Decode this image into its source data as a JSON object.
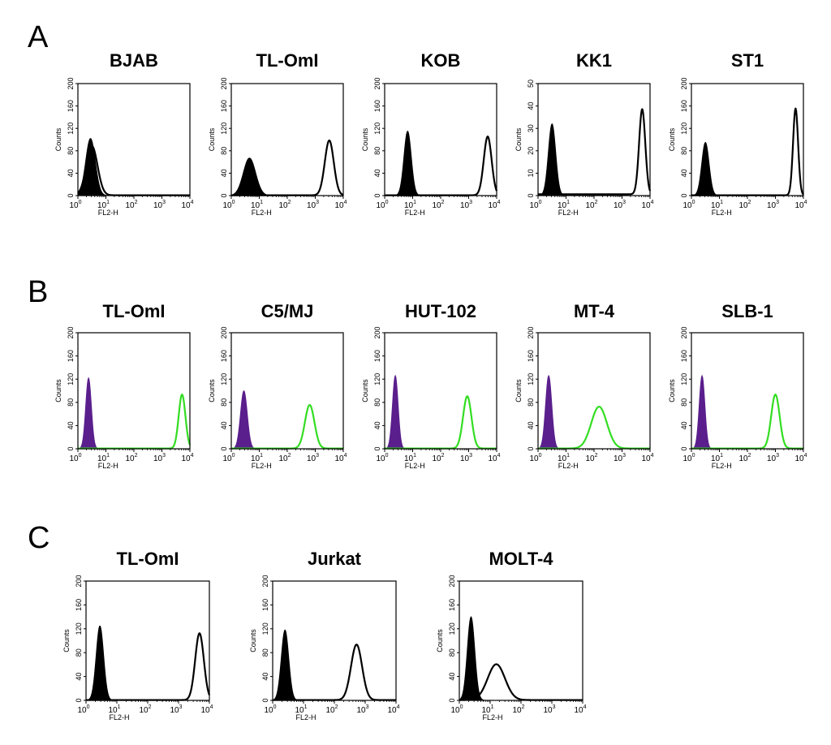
{
  "panels": [
    {
      "letter": "A",
      "colors": {
        "control": "#000000",
        "stain": "#000000"
      },
      "charts": [
        {
          "title": "BJAB",
          "ymax": 200,
          "yticks": [
            "0",
            "40",
            "80",
            "120",
            "160",
            "200"
          ],
          "control": {
            "mu": 0.45,
            "sigma": 0.17,
            "peak": 102
          },
          "stain": {
            "mu": 0.5,
            "sigma": 0.2,
            "peak": 88
          }
        },
        {
          "title": "TL-OmI",
          "ymax": 200,
          "yticks": [
            "0",
            "40",
            "80",
            "120",
            "160",
            "200"
          ],
          "control": {
            "mu": 0.65,
            "sigma": 0.22,
            "peak": 67
          },
          "stain": {
            "mu": 3.5,
            "sigma": 0.16,
            "peak": 98
          }
        },
        {
          "title": "KOB",
          "ymax": 200,
          "yticks": [
            "0",
            "40",
            "80",
            "120",
            "160",
            "200"
          ],
          "control": {
            "mu": 0.82,
            "sigma": 0.13,
            "peak": 115
          },
          "stain": {
            "mu": 3.68,
            "sigma": 0.14,
            "peak": 105
          }
        },
        {
          "title": "KK1",
          "ymax": 50,
          "yticks": [
            "0",
            "10",
            "20",
            "30",
            "40",
            "50"
          ],
          "control": {
            "mu": 0.5,
            "sigma": 0.13,
            "peak": 32
          },
          "stain": {
            "mu": 3.72,
            "sigma": 0.11,
            "peak": 38
          }
        },
        {
          "title": "ST1",
          "ymax": 200,
          "yticks": [
            "0",
            "40",
            "80",
            "120",
            "160",
            "200"
          ],
          "control": {
            "mu": 0.5,
            "sigma": 0.13,
            "peak": 95
          },
          "stain": {
            "mu": 3.72,
            "sigma": 0.09,
            "peak": 155
          }
        }
      ]
    },
    {
      "letter": "B",
      "colors": {
        "control": "#5a1f8c",
        "stain": "#33dd22"
      },
      "charts": [
        {
          "title": "TL-OmI",
          "ymax": 200,
          "yticks": [
            "0",
            "40",
            "80",
            "120",
            "160",
            "200"
          ],
          "control": {
            "mu": 0.38,
            "sigma": 0.1,
            "peak": 122
          },
          "stain": {
            "mu": 3.72,
            "sigma": 0.12,
            "peak": 93
          }
        },
        {
          "title": "C5/MJ",
          "ymax": 200,
          "yticks": [
            "0",
            "40",
            "80",
            "120",
            "160",
            "200"
          ],
          "control": {
            "mu": 0.45,
            "sigma": 0.12,
            "peak": 100
          },
          "stain": {
            "mu": 2.8,
            "sigma": 0.17,
            "peak": 75
          }
        },
        {
          "title": "HUT-102",
          "ymax": 200,
          "yticks": [
            "0",
            "40",
            "80",
            "120",
            "160",
            "200"
          ],
          "control": {
            "mu": 0.38,
            "sigma": 0.1,
            "peak": 126
          },
          "stain": {
            "mu": 2.95,
            "sigma": 0.15,
            "peak": 90
          }
        },
        {
          "title": "MT-4",
          "ymax": 200,
          "yticks": [
            "0",
            "40",
            "80",
            "120",
            "160",
            "200"
          ],
          "control": {
            "mu": 0.38,
            "sigma": 0.11,
            "peak": 126
          },
          "stain": {
            "mu": 2.18,
            "sigma": 0.28,
            "peak": 72
          }
        },
        {
          "title": "SLB-1",
          "ymax": 200,
          "yticks": [
            "0",
            "40",
            "80",
            "120",
            "160",
            "200"
          ],
          "control": {
            "mu": 0.38,
            "sigma": 0.1,
            "peak": 126
          },
          "stain": {
            "mu": 3.0,
            "sigma": 0.15,
            "peak": 93
          }
        }
      ]
    },
    {
      "letter": "C",
      "colors": {
        "control": "#000000",
        "stain": "#000000"
      },
      "charts": [
        {
          "title": "TL-OmI",
          "ymax": 200,
          "yticks": [
            "0",
            "40",
            "80",
            "120",
            "160",
            "200"
          ],
          "control": {
            "mu": 0.45,
            "sigma": 0.12,
            "peak": 125
          },
          "stain": {
            "mu": 3.68,
            "sigma": 0.14,
            "peak": 112
          }
        },
        {
          "title": "Jurkat",
          "ymax": 200,
          "yticks": [
            "0",
            "40",
            "80",
            "120",
            "160",
            "200"
          ],
          "control": {
            "mu": 0.4,
            "sigma": 0.12,
            "peak": 118
          },
          "stain": {
            "mu": 2.72,
            "sigma": 0.18,
            "peak": 93
          }
        },
        {
          "title": "MOLT-4",
          "ymax": 200,
          "yticks": [
            "0",
            "40",
            "80",
            "120",
            "160",
            "200"
          ],
          "control": {
            "mu": 0.38,
            "sigma": 0.12,
            "peak": 140
          },
          "stain": {
            "mu": 1.2,
            "sigma": 0.28,
            "peak": 60
          }
        }
      ]
    }
  ],
  "xaxis": {
    "label": "FL2-H",
    "ticks": [
      {
        "base": "10",
        "exp": "0"
      },
      {
        "base": "10",
        "exp": "1"
      },
      {
        "base": "10",
        "exp": "2"
      },
      {
        "base": "10",
        "exp": "3"
      },
      {
        "base": "10",
        "exp": "4"
      }
    ]
  },
  "yaxis": {
    "label": "Counts"
  }
}
